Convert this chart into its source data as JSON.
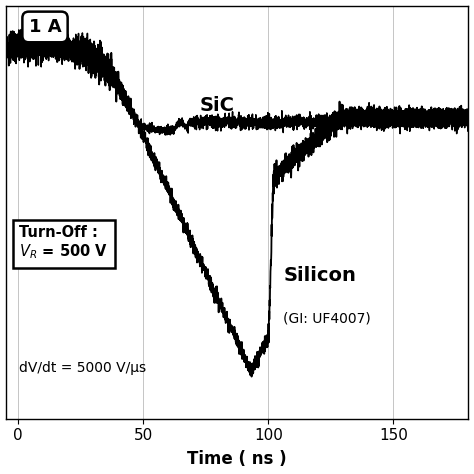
{
  "title": "",
  "xlabel": "Time ( ns )",
  "ylabel": "",
  "xlim": [
    -5,
    180
  ],
  "ylim": [
    -4.5,
    1.6
  ],
  "xticks": [
    0,
    50,
    100,
    150
  ],
  "background_color": "#ffffff",
  "grid_color": "#bbbbbb",
  "label_1A": "1 A",
  "label_SiC": "SiC",
  "label_Silicon": "Silicon",
  "label_Silicon_sub": "(GI: UF4007)",
  "label_turnoff_line1": "Turn-Off :",
  "label_turnoff_line2": "VR = 500 V",
  "label_dvdt": "dV/dt = 5000 V/µs",
  "line_color": "#000000",
  "noise_amp_top": 0.08,
  "noise_amp_flat": 0.05
}
